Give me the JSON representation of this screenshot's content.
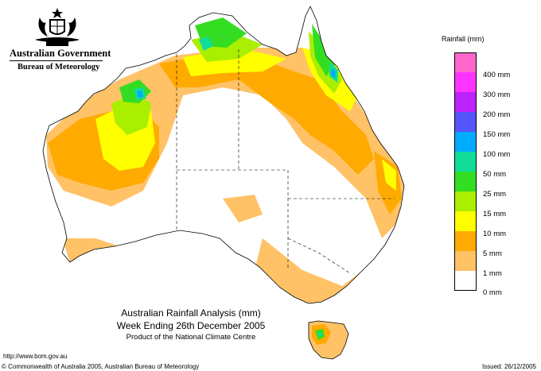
{
  "header": {
    "government": "Australian Government",
    "bureau": "Bureau of Meteorology"
  },
  "map": {
    "title_line1": "Australian Rainfall Analysis (mm)",
    "title_line2": "Week Ending 26th December 2005",
    "title_line3": "Product of the National Climate Centre"
  },
  "legend": {
    "title": "Rainfall (mm)",
    "items": [
      {
        "label": "",
        "color": "#ff66cc"
      },
      {
        "label": "400 mm",
        "color": "#ff33ff"
      },
      {
        "label": "300 mm",
        "color": "#bb22ff"
      },
      {
        "label": "200 mm",
        "color": "#5555ff"
      },
      {
        "label": "150 mm",
        "color": "#00aaff"
      },
      {
        "label": "100 mm",
        "color": "#11dd99"
      },
      {
        "label": "50 mm",
        "color": "#33dd22"
      },
      {
        "label": "25 mm",
        "color": "#aaee00"
      },
      {
        "label": "15 mm",
        "color": "#ffff00"
      },
      {
        "label": "10 mm",
        "color": "#ffaa00"
      },
      {
        "label": "5 mm",
        "color": "#ffc266"
      },
      {
        "label": "1 mm",
        "color": "#ffffff"
      },
      {
        "label": "0 mm",
        "color": "#ffffff"
      }
    ]
  },
  "footer": {
    "url": "http://www.bom.gov.au",
    "copyright": "© Commonwealth of Australia 2005, Australian Bureau of Meteorology",
    "issued": "Issued: 26/12/2005"
  }
}
